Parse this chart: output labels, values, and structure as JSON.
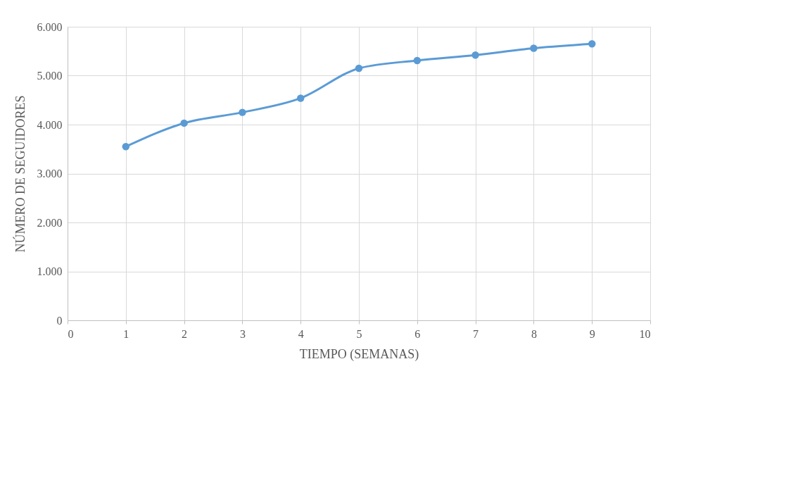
{
  "chart_data": {
    "type": "line",
    "xlabel": "TIEMPO (SEMANAS)",
    "ylabel": "NÚMERO DE SEGUIDORES",
    "x": [
      1,
      2,
      3,
      4,
      5,
      6,
      7,
      8,
      9
    ],
    "series": [
      {
        "color": "#5b9bd5",
        "values": [
          3550,
          4030,
          4250,
          4540,
          5150,
          5310,
          5420,
          5560,
          5650
        ]
      }
    ],
    "xlim": [
      0,
      10
    ],
    "xticks": [
      0,
      1,
      2,
      3,
      4,
      5,
      6,
      7,
      8,
      9,
      10
    ],
    "ylim": [
      0,
      6000
    ],
    "yticks": [
      0,
      {
        "value": 1000,
        "label": "1.000"
      },
      {
        "value": 2000,
        "label": "2.000"
      },
      {
        "value": 3000,
        "label": "3.000"
      },
      {
        "value": 4000,
        "label": "4.000"
      },
      {
        "value": 5000,
        "label": "5.000"
      },
      {
        "value": 6000,
        "label": "6.000"
      }
    ],
    "grid": true,
    "marker": "circle",
    "line_style": "solid"
  }
}
